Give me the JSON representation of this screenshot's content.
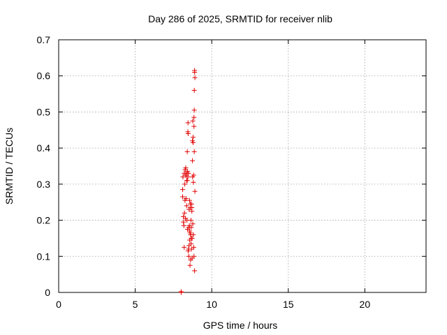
{
  "chart_data": {
    "type": "scatter",
    "title": "Day 286 of 2025, SRMTID for receiver nlib",
    "xlabel": "GPS time / hours",
    "ylabel": "SRMTID / TECUs",
    "xlim": [
      0,
      24
    ],
    "ylim": [
      0,
      0.7
    ],
    "xticks": [
      0,
      5,
      10,
      15,
      20
    ],
    "xtick_labels": [
      "0",
      "5",
      "10",
      "15",
      "20"
    ],
    "yticks": [
      0,
      0.1,
      0.2,
      0.3,
      0.4,
      0.5,
      0.6,
      0.7
    ],
    "ytick_labels": [
      "0",
      "0.1",
      "0.2",
      "0.3",
      "0.4",
      "0.5",
      "0.6",
      "0.7"
    ],
    "grid": true,
    "marker": "+",
    "color": "#e00000",
    "series": [
      {
        "name": "nlib",
        "points": [
          [
            8.0,
            0.002
          ],
          [
            8.01,
            0.0
          ],
          [
            8.1,
            0.265
          ],
          [
            8.1,
            0.285
          ],
          [
            8.12,
            0.32
          ],
          [
            8.15,
            0.195
          ],
          [
            8.15,
            0.21
          ],
          [
            8.18,
            0.185
          ],
          [
            8.2,
            0.33
          ],
          [
            8.2,
            0.125
          ],
          [
            8.22,
            0.22
          ],
          [
            8.24,
            0.3
          ],
          [
            8.25,
            0.255
          ],
          [
            8.26,
            0.34
          ],
          [
            8.28,
            0.205
          ],
          [
            8.3,
            0.345
          ],
          [
            8.32,
            0.26
          ],
          [
            8.34,
            0.325
          ],
          [
            8.36,
            0.24
          ],
          [
            8.38,
            0.2
          ],
          [
            8.4,
            0.31
          ],
          [
            8.4,
            0.39
          ],
          [
            8.42,
            0.335
          ],
          [
            8.42,
            0.175
          ],
          [
            8.44,
            0.445
          ],
          [
            8.45,
            0.47
          ],
          [
            8.46,
            0.44
          ],
          [
            8.46,
            0.115
          ],
          [
            8.48,
            0.33
          ],
          [
            8.48,
            0.12
          ],
          [
            8.5,
            0.18
          ],
          [
            8.5,
            0.1
          ],
          [
            8.52,
            0.23
          ],
          [
            8.52,
            0.13
          ],
          [
            8.54,
            0.185
          ],
          [
            8.55,
            0.255
          ],
          [
            8.56,
            0.145
          ],
          [
            8.58,
            0.075
          ],
          [
            8.58,
            0.165
          ],
          [
            8.6,
            0.245
          ],
          [
            8.6,
            0.235
          ],
          [
            8.62,
            0.16
          ],
          [
            8.62,
            0.09
          ],
          [
            8.64,
            0.2
          ],
          [
            8.65,
            0.135
          ],
          [
            8.66,
            0.15
          ],
          [
            8.68,
            0.245
          ],
          [
            8.68,
            0.12
          ],
          [
            8.7,
            0.225
          ],
          [
            8.7,
            0.235
          ],
          [
            8.72,
            0.15
          ],
          [
            8.72,
            0.095
          ],
          [
            8.74,
            0.42
          ],
          [
            8.74,
            0.365
          ],
          [
            8.75,
            0.32
          ],
          [
            8.76,
            0.475
          ],
          [
            8.76,
            0.19
          ],
          [
            8.78,
            0.43
          ],
          [
            8.78,
            0.415
          ],
          [
            8.8,
            0.305
          ],
          [
            8.8,
            0.16
          ],
          [
            8.82,
            0.325
          ],
          [
            8.82,
            0.125
          ],
          [
            8.84,
            0.485
          ],
          [
            8.84,
            0.46
          ],
          [
            8.86,
            0.505
          ],
          [
            8.86,
            0.39
          ],
          [
            8.86,
            0.56
          ],
          [
            8.88,
            0.615
          ],
          [
            8.88,
            0.61
          ],
          [
            8.9,
            0.595
          ],
          [
            8.9,
            0.28
          ],
          [
            8.88,
            0.06
          ],
          [
            8.84,
            0.1
          ],
          [
            8.34,
            0.33
          ],
          [
            8.36,
            0.31
          ],
          [
            8.44,
            0.32
          ],
          [
            8.3,
            0.325
          ],
          [
            8.56,
            0.17
          ],
          [
            8.66,
            0.18
          ]
        ]
      }
    ]
  }
}
